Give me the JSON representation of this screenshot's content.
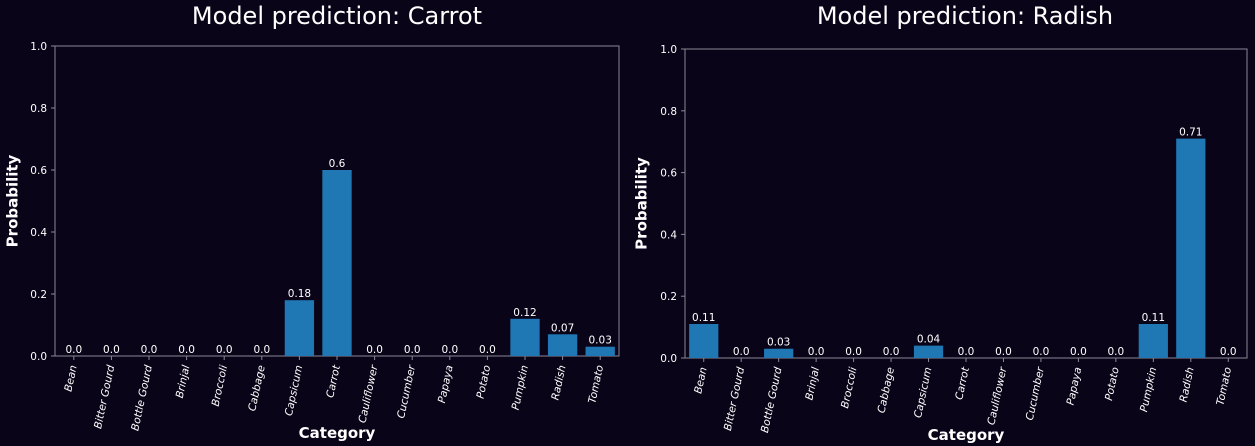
{
  "colors": {
    "background": "#0a0418",
    "bar": "#1f77b4",
    "axis": "#8a8797",
    "text": "#ffffff"
  },
  "chart_data": [
    {
      "type": "bar",
      "title": "Model prediction: Carrot",
      "xlabel": "Category",
      "ylabel": "Probability",
      "ylim": [
        0,
        1.0
      ],
      "yticks": [
        "0.0",
        "0.2",
        "0.4",
        "0.6",
        "0.8",
        "1.0"
      ],
      "categories": [
        "Bean",
        "Bitter Gourd",
        "Bottle Gourd",
        "Brinjal",
        "Broccoli",
        "Cabbage",
        "Capsicum",
        "Carrot",
        "Cauliflower",
        "Cucumber",
        "Papaya",
        "Potato",
        "Pumpkin",
        "Radish",
        "Tomato"
      ],
      "values": [
        0.0,
        0.0,
        0.0,
        0.0,
        0.0,
        0.0,
        0.18,
        0.6,
        0.0,
        0.0,
        0.0,
        0.0,
        0.12,
        0.07,
        0.03
      ],
      "value_labels": [
        "0.0",
        "0.0",
        "0.0",
        "0.0",
        "0.0",
        "0.0",
        "0.18",
        "0.6",
        "0.0",
        "0.0",
        "0.0",
        "0.0",
        "0.12",
        "0.07",
        "0.03"
      ],
      "grid": false
    },
    {
      "type": "bar",
      "title": "Model prediction: Radish",
      "xlabel": "Category",
      "ylabel": "Probability",
      "ylim": [
        0,
        1.0
      ],
      "yticks": [
        "0.0",
        "0.2",
        "0.4",
        "0.6",
        "0.8",
        "1.0"
      ],
      "categories": [
        "Bean",
        "Bitter Gourd",
        "Bottle Gourd",
        "Brinjal",
        "Broccoli",
        "Cabbage",
        "Capsicum",
        "Carrot",
        "Cauliflower",
        "Cucumber",
        "Papaya",
        "Potato",
        "Pumpkin",
        "Radish",
        "Tomato"
      ],
      "values": [
        0.11,
        0.0,
        0.03,
        0.0,
        0.0,
        0.0,
        0.04,
        0.0,
        0.0,
        0.0,
        0.0,
        0.0,
        0.11,
        0.71,
        0.0
      ],
      "value_labels": [
        "0.11",
        "0.0",
        "0.03",
        "0.0",
        "0.0",
        "0.0",
        "0.04",
        "0.0",
        "0.0",
        "0.0",
        "0.0",
        "0.0",
        "0.11",
        "0.71",
        "0.0"
      ],
      "grid": false
    }
  ]
}
